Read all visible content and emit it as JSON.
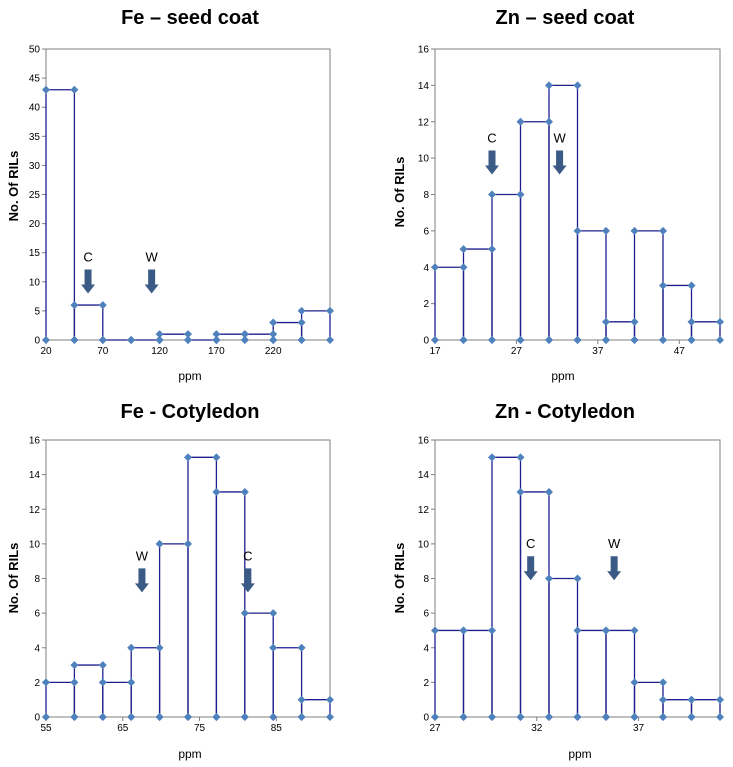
{
  "colors": {
    "line": "#1f1f8f",
    "marker": "#4f81bd",
    "arrow": "#3b5a85",
    "frame": "#7f7f7f"
  },
  "chart_data": [
    {
      "type": "line",
      "title": "Fe – seed coat",
      "xlabel": "ppm",
      "ylabel": "No. Of RILs",
      "ylim": [
        0,
        50
      ],
      "yticks": [
        0,
        5,
        10,
        15,
        20,
        25,
        30,
        35,
        40,
        45,
        50
      ],
      "xlim": [
        20,
        270
      ],
      "xticks": [
        20,
        70,
        120,
        170,
        220
      ],
      "steps": [
        {
          "start": 20,
          "end": 45,
          "count": 43
        },
        {
          "start": 45,
          "end": 70,
          "count": 6
        },
        {
          "start": 70,
          "end": 95,
          "count": 0
        },
        {
          "start": 95,
          "end": 120,
          "count": 0
        },
        {
          "start": 120,
          "end": 145,
          "count": 1
        },
        {
          "start": 145,
          "end": 170,
          "count": 0
        },
        {
          "start": 170,
          "end": 195,
          "count": 1
        },
        {
          "start": 195,
          "end": 220,
          "count": 1
        },
        {
          "start": 220,
          "end": 245,
          "count": 3
        },
        {
          "start": 245,
          "end": 270,
          "count": 5
        }
      ],
      "annotations": [
        {
          "label": "C",
          "x": 57,
          "y": 8
        },
        {
          "label": "W",
          "x": 113,
          "y": 8
        }
      ]
    },
    {
      "type": "line",
      "title": "Zn – seed coat",
      "xlabel": "ppm",
      "ylabel": "No. Of RILs",
      "ylim": [
        0,
        16
      ],
      "yticks": [
        0,
        2,
        4,
        6,
        8,
        10,
        12,
        14,
        16
      ],
      "xlim": [
        17,
        52
      ],
      "xticks": [
        17,
        27,
        37,
        47
      ],
      "steps": [
        {
          "start": 17,
          "end": 20.5,
          "count": 4
        },
        {
          "start": 20.5,
          "end": 24,
          "count": 5
        },
        {
          "start": 24,
          "end": 27.5,
          "count": 8
        },
        {
          "start": 27.5,
          "end": 31,
          "count": 12
        },
        {
          "start": 31,
          "end": 34.5,
          "count": 14
        },
        {
          "start": 34.5,
          "end": 38,
          "count": 6
        },
        {
          "start": 38,
          "end": 41.5,
          "count": 1
        },
        {
          "start": 41.5,
          "end": 45,
          "count": 6
        },
        {
          "start": 45,
          "end": 48.5,
          "count": 3
        },
        {
          "start": 48.5,
          "end": 52,
          "count": 1
        }
      ],
      "annotations": [
        {
          "label": "C",
          "x": 24,
          "y": 9.1
        },
        {
          "label": "W",
          "x": 32.3,
          "y": 9.1
        }
      ]
    },
    {
      "type": "line",
      "title": "Fe - Cotyledon",
      "xlabel": "ppm",
      "ylabel": "No. Of RILs",
      "ylim": [
        0,
        16
      ],
      "yticks": [
        0,
        2,
        4,
        6,
        8,
        10,
        12,
        14,
        16
      ],
      "xlim": [
        55,
        92
      ],
      "xticks": [
        55,
        65,
        75,
        85
      ],
      "steps": [
        {
          "start": 55,
          "end": 58.7,
          "count": 2
        },
        {
          "start": 58.7,
          "end": 62.4,
          "count": 3
        },
        {
          "start": 62.4,
          "end": 66.1,
          "count": 2
        },
        {
          "start": 66.1,
          "end": 69.8,
          "count": 4
        },
        {
          "start": 69.8,
          "end": 73.5,
          "count": 10
        },
        {
          "start": 73.5,
          "end": 77.2,
          "count": 15
        },
        {
          "start": 77.2,
          "end": 80.9,
          "count": 13
        },
        {
          "start": 80.9,
          "end": 84.6,
          "count": 6
        },
        {
          "start": 84.6,
          "end": 88.3,
          "count": 4
        },
        {
          "start": 88.3,
          "end": 92,
          "count": 1
        }
      ],
      "annotations": [
        {
          "label": "W",
          "x": 67.5,
          "y": 7.2
        },
        {
          "label": "C",
          "x": 81.3,
          "y": 7.2
        }
      ]
    },
    {
      "type": "line",
      "title": "Zn - Cotyledon",
      "xlabel": "ppm",
      "ylabel": "No. Of RILs",
      "ylim": [
        0,
        16
      ],
      "yticks": [
        0,
        2,
        4,
        6,
        8,
        10,
        12,
        14,
        16
      ],
      "xlim": [
        27,
        41
      ],
      "xticks": [
        27,
        32,
        37
      ],
      "steps": [
        {
          "start": 27,
          "end": 28.4,
          "count": 5
        },
        {
          "start": 28.4,
          "end": 29.8,
          "count": 5
        },
        {
          "start": 29.8,
          "end": 31.2,
          "count": 15
        },
        {
          "start": 31.2,
          "end": 32.6,
          "count": 13
        },
        {
          "start": 32.6,
          "end": 34,
          "count": 8
        },
        {
          "start": 34,
          "end": 35.4,
          "count": 5
        },
        {
          "start": 35.4,
          "end": 36.8,
          "count": 5
        },
        {
          "start": 36.8,
          "end": 38.2,
          "count": 2
        },
        {
          "start": 38.2,
          "end": 39.6,
          "count": 1
        },
        {
          "start": 39.6,
          "end": 41,
          "count": 1
        }
      ],
      "annotations": [
        {
          "label": "C",
          "x": 31.7,
          "y": 7.9
        },
        {
          "label": "W",
          "x": 35.8,
          "y": 7.9
        }
      ]
    }
  ]
}
